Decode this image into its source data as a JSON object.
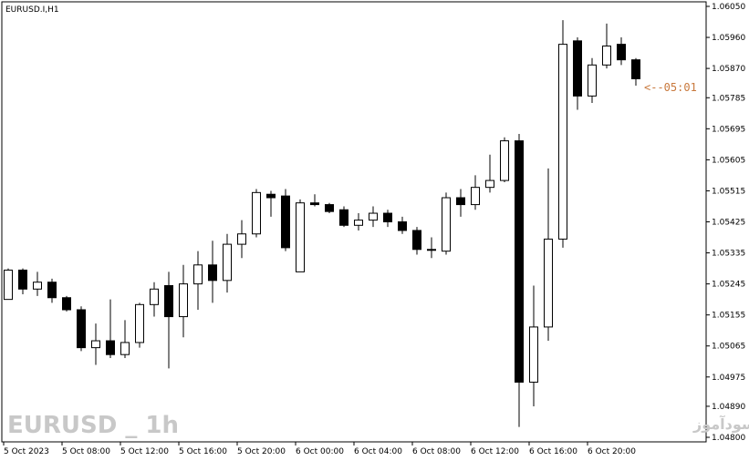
{
  "chart_data": {
    "type": "candlestick",
    "symbol_label": "EURUSD.I,H1",
    "timer_label": "<--05:01",
    "watermark_left": "EURUSD _ 1h",
    "watermark_right": "انتشار در سایت سودآموز",
    "ylim": [
      1.048,
      1.0605
    ],
    "y_ticks": [
      "1.06050",
      "1.05960",
      "1.05870",
      "1.05785",
      "1.05695",
      "1.05605",
      "1.05515",
      "1.05425",
      "1.05335",
      "1.05245",
      "1.05155",
      "1.05065",
      "1.04975",
      "1.04890",
      "1.04800"
    ],
    "x_ticks": [
      "5 Oct 2023",
      "5 Oct 08:00",
      "5 Oct 12:00",
      "5 Oct 16:00",
      "5 Oct 20:00",
      "6 Oct 00:00",
      "6 Oct 04:00",
      "6 Oct 08:00",
      "6 Oct 12:00",
      "6 Oct 16:00",
      "6 Oct 20:00"
    ],
    "candles": [
      {
        "o": 1.052,
        "h": 1.0529,
        "l": 1.052,
        "c": 1.05285
      },
      {
        "o": 1.05285,
        "h": 1.0529,
        "l": 1.05215,
        "c": 1.0523
      },
      {
        "o": 1.0523,
        "h": 1.0528,
        "l": 1.0521,
        "c": 1.0525
      },
      {
        "o": 1.0525,
        "h": 1.0526,
        "l": 1.0519,
        "c": 1.05205
      },
      {
        "o": 1.05205,
        "h": 1.0521,
        "l": 1.05165,
        "c": 1.0517
      },
      {
        "o": 1.0517,
        "h": 1.0518,
        "l": 1.0505,
        "c": 1.0506
      },
      {
        "o": 1.0506,
        "h": 1.0513,
        "l": 1.0501,
        "c": 1.0508
      },
      {
        "o": 1.0508,
        "h": 1.052,
        "l": 1.0503,
        "c": 1.0504
      },
      {
        "o": 1.0504,
        "h": 1.0514,
        "l": 1.0503,
        "c": 1.05075
      },
      {
        "o": 1.05075,
        "h": 1.0519,
        "l": 1.0506,
        "c": 1.05185
      },
      {
        "o": 1.05185,
        "h": 1.0525,
        "l": 1.0515,
        "c": 1.0523
      },
      {
        "o": 1.0524,
        "h": 1.0528,
        "l": 1.05,
        "c": 1.0515
      },
      {
        "o": 1.0515,
        "h": 1.053,
        "l": 1.0509,
        "c": 1.05245
      },
      {
        "o": 1.05245,
        "h": 1.0534,
        "l": 1.0517,
        "c": 1.053
      },
      {
        "o": 1.053,
        "h": 1.0537,
        "l": 1.0519,
        "c": 1.05255
      },
      {
        "o": 1.05255,
        "h": 1.0539,
        "l": 1.0522,
        "c": 1.0536
      },
      {
        "o": 1.0536,
        "h": 1.0543,
        "l": 1.0532,
        "c": 1.0539
      },
      {
        "o": 1.0539,
        "h": 1.0552,
        "l": 1.0538,
        "c": 1.0551
      },
      {
        "o": 1.05505,
        "h": 1.05515,
        "l": 1.0544,
        "c": 1.05495
      },
      {
        "o": 1.055,
        "h": 1.0552,
        "l": 1.0534,
        "c": 1.0535
      },
      {
        "o": 1.0528,
        "h": 1.0549,
        "l": 1.0528,
        "c": 1.0548
      },
      {
        "o": 1.0548,
        "h": 1.05505,
        "l": 1.0547,
        "c": 1.05475
      },
      {
        "o": 1.05475,
        "h": 1.0548,
        "l": 1.0545,
        "c": 1.05455
      },
      {
        "o": 1.0546,
        "h": 1.0547,
        "l": 1.0541,
        "c": 1.05415
      },
      {
        "o": 1.05415,
        "h": 1.0545,
        "l": 1.054,
        "c": 1.0543
      },
      {
        "o": 1.0543,
        "h": 1.0547,
        "l": 1.0541,
        "c": 1.0545
      },
      {
        "o": 1.0545,
        "h": 1.0546,
        "l": 1.0541,
        "c": 1.05425
      },
      {
        "o": 1.05425,
        "h": 1.0544,
        "l": 1.0539,
        "c": 1.054
      },
      {
        "o": 1.054,
        "h": 1.0541,
        "l": 1.0533,
        "c": 1.05345
      },
      {
        "o": 1.05345,
        "h": 1.0538,
        "l": 1.0532,
        "c": 1.05345
      },
      {
        "o": 1.0534,
        "h": 1.0551,
        "l": 1.0533,
        "c": 1.05495
      },
      {
        "o": 1.05495,
        "h": 1.0552,
        "l": 1.0544,
        "c": 1.05475
      },
      {
        "o": 1.05475,
        "h": 1.0556,
        "l": 1.0546,
        "c": 1.05525
      },
      {
        "o": 1.05525,
        "h": 1.0562,
        "l": 1.0551,
        "c": 1.05545
      },
      {
        "o": 1.05545,
        "h": 1.0567,
        "l": 1.0554,
        "c": 1.0566
      },
      {
        "o": 1.0566,
        "h": 1.0568,
        "l": 1.0483,
        "c": 1.0496
      },
      {
        "o": 1.0496,
        "h": 1.0524,
        "l": 1.0489,
        "c": 1.0512
      },
      {
        "o": 1.0512,
        "h": 1.0558,
        "l": 1.0508,
        "c": 1.05375
      },
      {
        "o": 1.05375,
        "h": 1.0601,
        "l": 1.0535,
        "c": 1.0594
      },
      {
        "o": 1.0595,
        "h": 1.0596,
        "l": 1.0575,
        "c": 1.0579
      },
      {
        "o": 1.0579,
        "h": 1.059,
        "l": 1.0577,
        "c": 1.0588
      },
      {
        "o": 1.0588,
        "h": 1.06,
        "l": 1.0587,
        "c": 1.05935
      },
      {
        "o": 1.0594,
        "h": 1.0596,
        "l": 1.0588,
        "c": 1.05895
      },
      {
        "o": 1.05895,
        "h": 1.059,
        "l": 1.0582,
        "c": 1.0584
      }
    ],
    "colors": {
      "axis": "#000000",
      "up_fill": "#ffffff",
      "down_fill": "#000000",
      "timer": "#c8783c",
      "watermark": "#c8c8c8"
    }
  }
}
